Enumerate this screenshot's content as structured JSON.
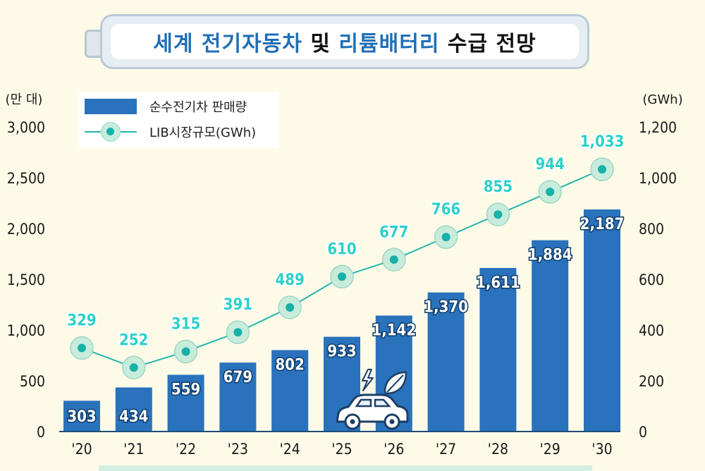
{
  "title": {
    "part1": "세계 전기자동차",
    "part2": "및",
    "part3": "리튬배터리",
    "part4": "수급 전망"
  },
  "legend": {
    "bar_label": "순수전기차 판매량",
    "line_label": "LIB시장규모(GWh)"
  },
  "colors": {
    "bar": "#2a72bc",
    "line": "#25b6ae",
    "line_label": "#2fd0c7",
    "title_accent": "#1f6fb8"
  },
  "chart_data": {
    "type": "bar+line",
    "categories": [
      "'20",
      "'21",
      "'22",
      "'23",
      "'24",
      "'25",
      "'26",
      "'27",
      "'28",
      "'29",
      "'30"
    ],
    "series": [
      {
        "name": "순수전기차 판매량",
        "type": "bar",
        "axis": "left",
        "values": [
          303,
          434,
          559,
          679,
          802,
          933,
          1142,
          1370,
          1611,
          1884,
          2187
        ],
        "labels": [
          "303",
          "434",
          "559",
          "679",
          "802",
          "933",
          "1,142",
          "1,370",
          "1,611",
          "1,884",
          "2,187"
        ]
      },
      {
        "name": "LIB시장규모(GWh)",
        "type": "line",
        "axis": "right",
        "values": [
          329,
          252,
          315,
          391,
          489,
          610,
          677,
          766,
          855,
          944,
          1033
        ],
        "labels": [
          "329",
          "252",
          "315",
          "391",
          "489",
          "610",
          "677",
          "766",
          "855",
          "944",
          "1,033"
        ]
      }
    ],
    "y_left": {
      "unit": "(만 대)",
      "range": [
        0,
        3000
      ],
      "ticks": [
        0,
        500,
        1000,
        1500,
        2000,
        2500,
        3000
      ],
      "tick_labels": [
        "0",
        "500",
        "1,000",
        "1,500",
        "2,000",
        "2,500",
        "3,000"
      ]
    },
    "y_right": {
      "unit": "(GWh)",
      "range": [
        0,
        1200
      ],
      "ticks": [
        0,
        200,
        400,
        600,
        800,
        1000,
        1200
      ],
      "tick_labels": [
        "0",
        "200",
        "400",
        "600",
        "800",
        "1,000",
        "1,200"
      ]
    },
    "grid": false,
    "legend_position": "top-left"
  }
}
